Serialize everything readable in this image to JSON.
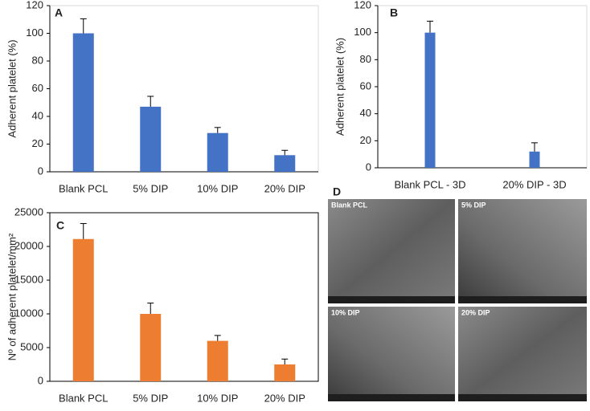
{
  "chart_data": [
    {
      "type": "bar",
      "label": "A",
      "ylabel": "Adherent platelet (%)",
      "categories": [
        "Blank PCL",
        "5% DIP",
        "10% DIP",
        "20% DIP"
      ],
      "values": [
        100,
        47,
        28,
        12
      ],
      "errors": [
        10.5,
        7.5,
        4,
        3.5
      ],
      "color": "#4472c4",
      "ylim": [
        0,
        120
      ],
      "yticks": [
        0,
        20,
        40,
        60,
        80,
        100,
        120
      ]
    },
    {
      "type": "bar",
      "label": "B",
      "ylabel": "Adherent platelet (%)",
      "categories": [
        "Blank PCL - 3D",
        "20% DIP - 3D"
      ],
      "values": [
        100,
        12
      ],
      "errors": [
        8.5,
        6.5
      ],
      "color": "#4472c4",
      "ylim": [
        0,
        120
      ],
      "yticks": [
        0,
        20,
        40,
        60,
        80,
        100,
        120
      ]
    },
    {
      "type": "bar",
      "label": "C",
      "ylabel": "Nº of adherent platelet/mm²",
      "categories": [
        "Blank PCL",
        "5% DIP",
        "10% DIP",
        "20% DIP"
      ],
      "values": [
        21100,
        10000,
        6000,
        2500
      ],
      "errors": [
        2300,
        1600,
        800,
        800
      ],
      "color": "#ed7d31",
      "ylim": [
        0,
        25000
      ],
      "yticks": [
        0,
        5000,
        10000,
        15000,
        20000,
        25000
      ]
    }
  ],
  "images_panel": {
    "label": "D",
    "captions": [
      "Blank PCL",
      "5% DIP",
      "10% DIP",
      "20% DIP"
    ]
  }
}
